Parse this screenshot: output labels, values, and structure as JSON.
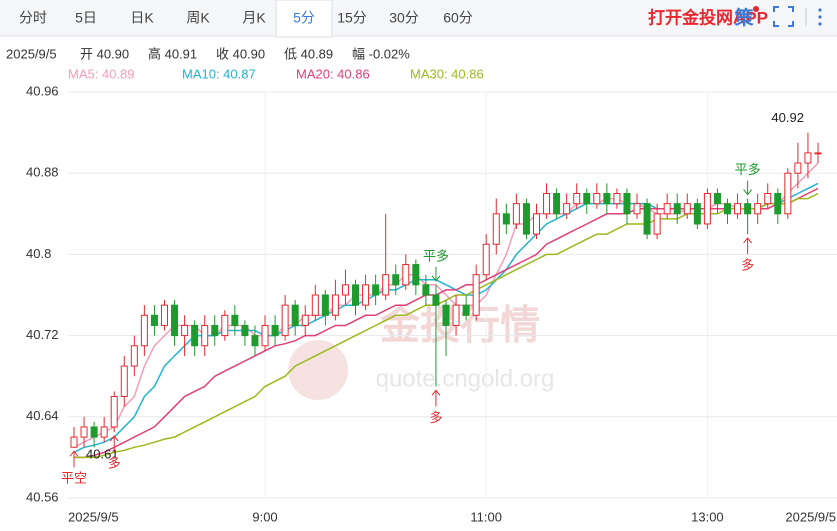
{
  "tabs": [
    "分时",
    "5日",
    "日K",
    "周K",
    "月K",
    "5分",
    "15分",
    "30分",
    "60分"
  ],
  "active_tab": 5,
  "app_link": "打开金投网APP",
  "strategy_icon": "策",
  "quote": [
    "2025/9/5",
    "开 40.90",
    "高 40.91",
    "收 40.90",
    "低 40.89",
    "幅 -0.02%"
  ],
  "watermark": [
    "金投行情",
    "quote.cngold.org"
  ],
  "chart_data": {
    "type": "candlestick",
    "categories": [
      "2025/9/5",
      null,
      null,
      null,
      null,
      null,
      null,
      null,
      null,
      null,
      null,
      null,
      null,
      null,
      null,
      null,
      null,
      null,
      null,
      "9:00",
      null,
      null,
      null,
      null,
      null,
      null,
      null,
      null,
      null,
      null,
      null,
      null,
      null,
      null,
      null,
      null,
      null,
      null,
      null,
      null,
      null,
      "11:00",
      null,
      null,
      null,
      null,
      null,
      null,
      null,
      null,
      null,
      null,
      null,
      null,
      null,
      null,
      null,
      null,
      null,
      null,
      null,
      null,
      null,
      "13:00",
      null,
      null,
      null,
      null,
      null,
      null,
      null,
      null,
      null,
      null,
      "2025/9/5"
    ],
    "open": [
      40.61,
      40.62,
      40.63,
      40.62,
      40.63,
      40.66,
      40.69,
      40.71,
      40.74,
      40.73,
      40.75,
      40.72,
      40.73,
      40.71,
      40.73,
      40.72,
      40.74,
      40.73,
      40.72,
      40.71,
      40.73,
      40.72,
      40.75,
      40.73,
      40.74,
      40.76,
      40.74,
      40.76,
      40.77,
      40.75,
      40.77,
      40.76,
      40.78,
      40.77,
      40.79,
      40.77,
      40.76,
      40.75,
      40.73,
      40.75,
      40.74,
      40.78,
      40.81,
      40.84,
      40.83,
      40.85,
      40.82,
      40.84,
      40.86,
      40.84,
      40.85,
      40.86,
      40.85,
      40.86,
      40.85,
      40.86,
      40.84,
      40.85,
      40.82,
      40.84,
      40.85,
      40.84,
      40.85,
      40.83,
      40.86,
      40.85,
      40.84,
      40.85,
      40.84,
      40.85,
      40.86,
      40.84,
      40.88,
      40.89,
      40.9
    ],
    "high": [
      40.63,
      40.64,
      40.635,
      40.64,
      40.665,
      40.7,
      40.72,
      40.75,
      40.75,
      40.755,
      40.755,
      40.74,
      40.735,
      40.74,
      40.74,
      40.745,
      40.75,
      40.735,
      40.73,
      40.74,
      40.74,
      40.76,
      40.755,
      40.75,
      40.77,
      40.765,
      40.775,
      40.785,
      40.775,
      40.78,
      40.78,
      40.84,
      40.79,
      40.8,
      40.795,
      40.78,
      40.77,
      40.755,
      40.76,
      40.76,
      40.79,
      40.82,
      40.855,
      40.85,
      40.86,
      40.855,
      40.85,
      40.87,
      40.865,
      40.86,
      40.87,
      40.865,
      40.87,
      40.87,
      40.865,
      40.865,
      40.86,
      40.855,
      40.85,
      40.86,
      40.86,
      40.86,
      40.855,
      40.865,
      40.865,
      40.855,
      40.86,
      40.855,
      40.86,
      40.87,
      40.865,
      40.885,
      40.91,
      40.92,
      40.91
    ],
    "low": [
      40.61,
      40.61,
      40.61,
      40.615,
      40.625,
      40.65,
      40.68,
      40.7,
      40.72,
      40.725,
      40.71,
      40.7,
      40.7,
      40.7,
      40.71,
      40.715,
      40.72,
      40.71,
      40.7,
      40.705,
      40.71,
      40.715,
      40.72,
      40.72,
      40.735,
      40.73,
      40.735,
      40.75,
      40.74,
      40.745,
      40.75,
      40.755,
      40.76,
      40.765,
      40.76,
      40.75,
      40.67,
      40.7,
      40.72,
      40.735,
      40.735,
      40.775,
      40.8,
      40.82,
      40.825,
      40.815,
      40.815,
      40.835,
      40.835,
      40.835,
      40.845,
      40.84,
      40.845,
      40.84,
      40.845,
      40.83,
      40.835,
      40.815,
      40.815,
      40.835,
      40.83,
      40.835,
      40.825,
      40.825,
      40.84,
      40.83,
      40.835,
      40.82,
      40.83,
      40.845,
      40.83,
      40.835,
      40.865,
      40.875,
      40.89
    ],
    "close": [
      40.62,
      40.63,
      40.62,
      40.63,
      40.66,
      40.69,
      40.71,
      40.74,
      40.73,
      40.75,
      40.72,
      40.73,
      40.71,
      40.73,
      40.72,
      40.74,
      40.73,
      40.72,
      40.71,
      40.73,
      40.72,
      40.75,
      40.73,
      40.74,
      40.76,
      40.74,
      40.76,
      40.77,
      40.75,
      40.77,
      40.76,
      40.78,
      40.77,
      40.79,
      40.77,
      40.76,
      40.75,
      40.73,
      40.75,
      40.74,
      40.78,
      40.81,
      40.84,
      40.83,
      40.85,
      40.82,
      40.84,
      40.86,
      40.84,
      40.85,
      40.86,
      40.85,
      40.86,
      40.85,
      40.86,
      40.84,
      40.85,
      40.82,
      40.84,
      40.85,
      40.84,
      40.85,
      40.83,
      40.86,
      40.85,
      40.84,
      40.85,
      40.84,
      40.85,
      40.86,
      40.84,
      40.88,
      40.89,
      40.9,
      40.9
    ],
    "up_color": "#e8282e",
    "down_color": "#1e9a2e",
    "series": [
      {
        "name": "MA5: 40.89",
        "color": "#f49cb8",
        "values": [
          40.61,
          40.615,
          40.62,
          40.625,
          40.63,
          40.65,
          40.66,
          40.69,
          40.71,
          40.72,
          40.73,
          40.73,
          40.73,
          40.72,
          40.72,
          40.73,
          40.73,
          40.73,
          40.72,
          40.72,
          40.72,
          40.73,
          40.73,
          40.74,
          40.74,
          40.74,
          40.75,
          40.75,
          40.76,
          40.76,
          40.76,
          40.77,
          40.77,
          40.78,
          40.78,
          40.77,
          40.77,
          40.76,
          40.75,
          40.75,
          40.75,
          40.76,
          40.78,
          40.8,
          40.83,
          40.83,
          40.84,
          40.84,
          40.84,
          40.84,
          40.85,
          40.85,
          40.85,
          40.855,
          40.855,
          40.85,
          40.85,
          40.845,
          40.84,
          40.84,
          40.84,
          40.845,
          40.845,
          40.845,
          40.85,
          40.85,
          40.845,
          40.845,
          40.845,
          40.85,
          40.85,
          40.86,
          40.87,
          40.88,
          40.89
        ]
      },
      {
        "name": "MA10: 40.87",
        "color": "#22b4d4",
        "values": [
          40.605,
          40.61,
          40.612,
          40.615,
          40.62,
          40.63,
          40.64,
          40.66,
          40.67,
          40.69,
          40.7,
          40.71,
          40.72,
          40.72,
          40.72,
          40.725,
          40.725,
          40.725,
          40.725,
          40.72,
          40.72,
          40.725,
          40.73,
          40.73,
          40.735,
          40.74,
          40.745,
          40.75,
          40.75,
          40.755,
          40.76,
          40.765,
          40.765,
          40.77,
          40.775,
          40.775,
          40.775,
          40.77,
          40.765,
          40.76,
          40.76,
          40.765,
          40.775,
          40.785,
          40.8,
          40.81,
          40.82,
          40.83,
          40.835,
          40.84,
          40.845,
          40.85,
          40.85,
          40.85,
          40.85,
          40.85,
          40.85,
          40.85,
          40.845,
          40.845,
          40.845,
          40.845,
          40.845,
          40.845,
          40.845,
          40.845,
          40.845,
          40.845,
          40.845,
          40.85,
          40.85,
          40.855,
          40.86,
          40.865,
          40.87
        ]
      },
      {
        "name": "MA20: 40.86",
        "color": "#e23f78",
        "values": [
          40.6,
          40.6,
          40.602,
          40.605,
          40.61,
          40.615,
          40.62,
          40.625,
          40.63,
          40.64,
          40.65,
          40.66,
          40.665,
          40.67,
          40.68,
          40.685,
          40.69,
          40.695,
          40.7,
          40.705,
          40.71,
          40.712,
          40.715,
          40.72,
          40.72,
          40.725,
          40.73,
          40.73,
          40.735,
          40.74,
          40.74,
          40.745,
          40.75,
          40.75,
          40.755,
          40.76,
          40.76,
          40.765,
          40.765,
          40.77,
          40.77,
          40.775,
          40.78,
          40.785,
          40.79,
          40.795,
          40.8,
          40.81,
          40.815,
          40.82,
          40.825,
          40.83,
          40.835,
          40.84,
          40.84,
          40.84,
          40.845,
          40.845,
          40.845,
          40.845,
          40.845,
          40.845,
          40.845,
          40.845,
          40.845,
          40.845,
          40.845,
          40.845,
          40.845,
          40.845,
          40.85,
          40.85,
          40.855,
          40.86,
          40.865
        ]
      },
      {
        "name": "MA30: 40.86",
        "color": "#9aba1c",
        "values": [
          40.6,
          40.6,
          40.6,
          40.602,
          40.605,
          40.607,
          40.61,
          40.612,
          40.615,
          40.618,
          40.62,
          40.625,
          40.63,
          40.635,
          40.64,
          40.645,
          40.65,
          40.655,
          40.66,
          40.67,
          40.675,
          40.68,
          40.69,
          40.695,
          40.7,
          40.705,
          40.71,
          40.715,
          40.72,
          40.725,
          40.73,
          40.735,
          40.74,
          40.74,
          40.745,
          40.75,
          40.75,
          40.755,
          40.76,
          40.76,
          40.765,
          40.77,
          40.775,
          40.78,
          40.785,
          40.79,
          40.795,
          40.8,
          40.8,
          40.805,
          40.81,
          40.815,
          40.82,
          40.82,
          40.825,
          40.83,
          40.83,
          40.83,
          40.835,
          40.835,
          40.835,
          40.84,
          40.84,
          40.84,
          40.84,
          40.845,
          40.845,
          40.845,
          40.845,
          40.85,
          40.85,
          40.85,
          40.855,
          40.855,
          40.86
        ]
      }
    ],
    "max_label": {
      "value": 40.92,
      "label": "40.92"
    },
    "min_label": {
      "value": 40.61,
      "label": "40.61"
    },
    "signals": [
      {
        "text": "平空",
        "at": 0,
        "dir": "up"
      },
      {
        "text": "多",
        "at": 4,
        "dir": "up"
      },
      {
        "text": "平多",
        "at": 36,
        "dir": "down"
      },
      {
        "text": "多",
        "at": 36,
        "dir": "up"
      },
      {
        "text": "平多",
        "at": 67,
        "dir": "down"
      },
      {
        "text": "多",
        "at": 67,
        "dir": "up"
      }
    ],
    "ylim": [
      40.56,
      40.96
    ],
    "yticks": [
      40.56,
      40.64,
      40.72,
      40.8,
      40.88,
      40.96
    ],
    "grid": true
  }
}
